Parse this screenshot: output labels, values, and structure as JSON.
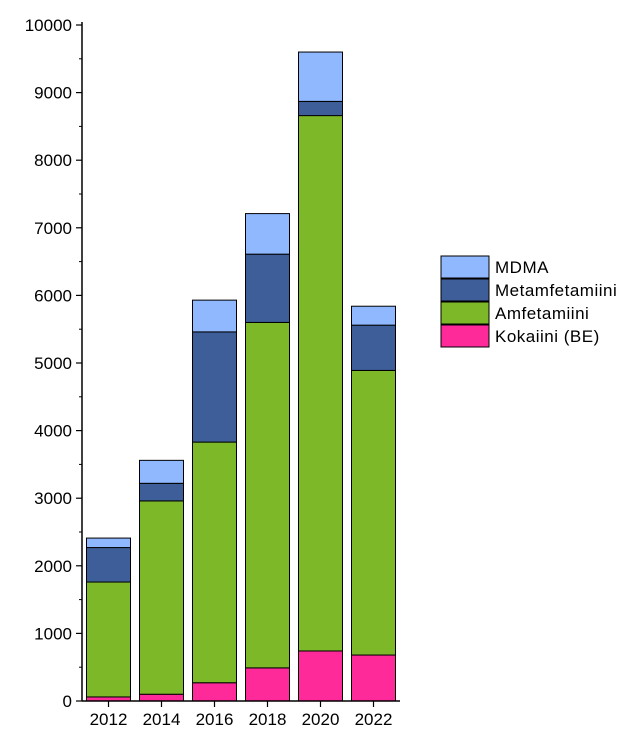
{
  "chart_data": {
    "type": "bar",
    "stacked": true,
    "title": "",
    "xlabel": "",
    "ylabel": "",
    "categories": [
      "2012",
      "2014",
      "2016",
      "2018",
      "2020",
      "2022"
    ],
    "ylim": [
      0,
      10000
    ],
    "yticks": [
      "0",
      "1000",
      "2000",
      "3000",
      "4000",
      "5000",
      "6000",
      "7000",
      "8000",
      "9000",
      "10000"
    ],
    "grid": false,
    "legend_position": "right",
    "series": [
      {
        "name": "Kokaiini (BE)",
        "color": "#ff2a9a",
        "values": [
          60,
          100,
          270,
          490,
          740,
          680
        ]
      },
      {
        "name": "Amfetamiini",
        "color": "#7cb828",
        "values": [
          1700,
          2860,
          3560,
          5110,
          7920,
          4210
        ]
      },
      {
        "name": "Metamfetamiini",
        "color": "#3e5e9a",
        "values": [
          510,
          260,
          1630,
          1010,
          210,
          670
        ]
      },
      {
        "name": "MDMA",
        "color": "#8fb8ff",
        "values": [
          140,
          340,
          470,
          600,
          730,
          280
        ]
      }
    ],
    "legend_order": [
      "MDMA",
      "Metamfetamiini",
      "Amfetamiini",
      "Kokaiini (BE)"
    ]
  }
}
